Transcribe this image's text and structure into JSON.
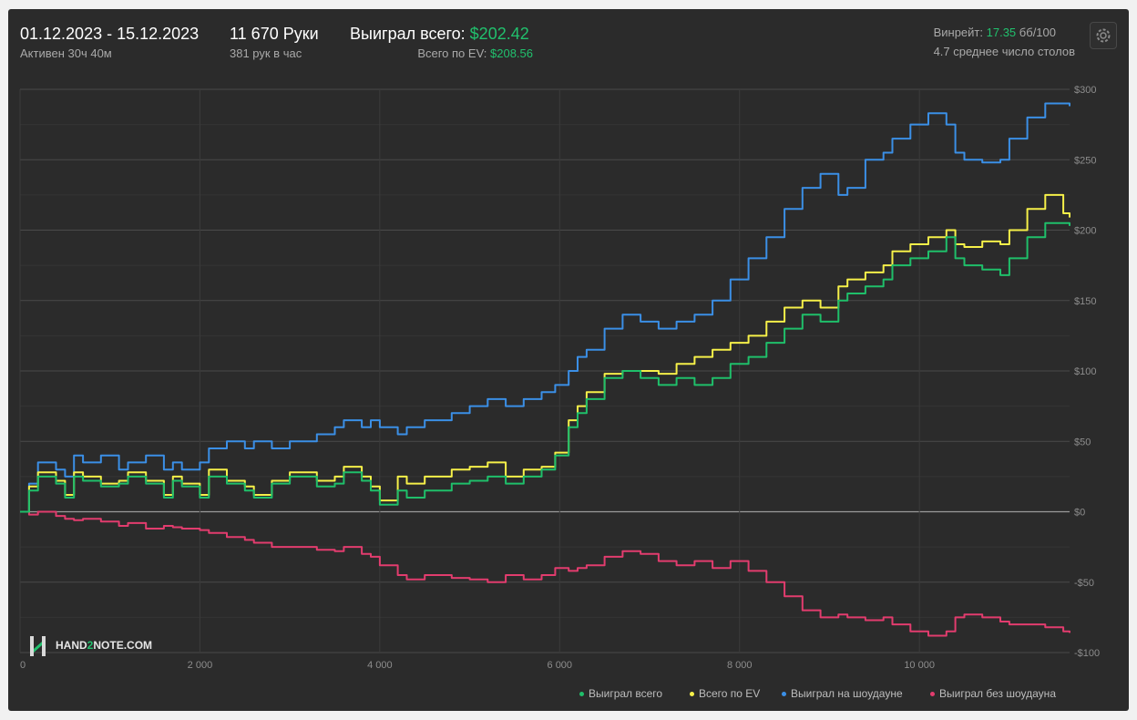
{
  "header": {
    "date_range": "01.12.2023 - 15.12.2023",
    "active_time": "Активен 30ч 40м",
    "hands": "11 670 Руки",
    "hands_per_hour": "381 рук в час",
    "won_total_label": "Выиграл всего:",
    "won_total_value": "$202.42",
    "ev_total_label": "Всего по EV:",
    "ev_total_value": "$208.56",
    "winrate_label": "Винрейт:",
    "winrate_value": "17.35",
    "winrate_unit": "бб/100",
    "avg_tables": "4.7 среднее число столов"
  },
  "logo": {
    "prefix": "HAND",
    "number": "2",
    "suffix": "NOTE.COM"
  },
  "icons": {
    "settings": "gear-icon",
    "logo": "h2n-logo-icon"
  },
  "colors": {
    "won_total": "#1fbf6a",
    "ev": "#f6f049",
    "showdown": "#3b8fe6",
    "non_showdown": "#e23c6e"
  },
  "chart_data": {
    "type": "line",
    "xlabel": "",
    "ylabel": "",
    "xlim": [
      0,
      11670
    ],
    "ylim": [
      -100,
      300
    ],
    "x_ticks": [
      0,
      2000,
      4000,
      6000,
      8000,
      10000
    ],
    "x_tick_labels": [
      "0",
      "2 000",
      "4 000",
      "6 000",
      "8 000",
      "10 000"
    ],
    "y_ticks": [
      300,
      250,
      200,
      150,
      100,
      50,
      0,
      -50,
      -100
    ],
    "y_tick_labels": [
      "$300",
      "$250",
      "$200",
      "$150",
      "$100",
      "$50",
      "$0",
      "-$50",
      "-$100"
    ],
    "grid": true,
    "legend_position": "bottom-right",
    "series": [
      {
        "name": "Выиграл всего",
        "color": "#1fbf6a",
        "x": [
          0,
          100,
          200,
          400,
          500,
          600,
          700,
          900,
          1100,
          1200,
          1400,
          1600,
          1700,
          1800,
          2000,
          2100,
          2300,
          2500,
          2600,
          2800,
          3000,
          3300,
          3500,
          3600,
          3800,
          3900,
          4000,
          4200,
          4300,
          4500,
          4800,
          5000,
          5200,
          5400,
          5600,
          5800,
          5950,
          6100,
          6200,
          6300,
          6500,
          6700,
          6900,
          7100,
          7300,
          7500,
          7700,
          7900,
          8100,
          8300,
          8500,
          8700,
          8900,
          9100,
          9200,
          9400,
          9600,
          9700,
          9900,
          10100,
          10300,
          10400,
          10500,
          10700,
          10900,
          11000,
          11200,
          11400,
          11600,
          11670
        ],
        "y": [
          0,
          15,
          25,
          20,
          10,
          25,
          22,
          18,
          20,
          25,
          20,
          10,
          22,
          18,
          10,
          25,
          20,
          15,
          10,
          20,
          25,
          18,
          20,
          28,
          22,
          15,
          5,
          15,
          10,
          15,
          20,
          22,
          25,
          20,
          25,
          30,
          40,
          60,
          70,
          80,
          95,
          100,
          95,
          90,
          95,
          90,
          95,
          105,
          110,
          120,
          130,
          140,
          135,
          150,
          155,
          160,
          165,
          175,
          180,
          185,
          195,
          180,
          175,
          172,
          168,
          180,
          195,
          205,
          205,
          203
        ]
      },
      {
        "name": "Всего по EV",
        "color": "#f6f049",
        "x": [
          0,
          100,
          200,
          400,
          500,
          600,
          700,
          900,
          1100,
          1200,
          1400,
          1600,
          1700,
          1800,
          2000,
          2100,
          2300,
          2500,
          2600,
          2800,
          3000,
          3300,
          3500,
          3600,
          3800,
          3900,
          4000,
          4200,
          4300,
          4500,
          4800,
          5000,
          5200,
          5400,
          5600,
          5800,
          5950,
          6100,
          6200,
          6300,
          6500,
          6700,
          6900,
          7100,
          7300,
          7500,
          7700,
          7900,
          8100,
          8300,
          8500,
          8700,
          8900,
          9100,
          9200,
          9400,
          9600,
          9700,
          9900,
          10100,
          10300,
          10400,
          10500,
          10700,
          10900,
          11000,
          11200,
          11400,
          11600,
          11670
        ],
        "y": [
          0,
          18,
          28,
          22,
          12,
          28,
          25,
          20,
          22,
          28,
          22,
          12,
          25,
          20,
          12,
          30,
          22,
          18,
          12,
          22,
          28,
          22,
          25,
          32,
          25,
          18,
          8,
          25,
          20,
          25,
          30,
          32,
          35,
          25,
          30,
          32,
          42,
          65,
          75,
          85,
          98,
          100,
          100,
          98,
          105,
          110,
          115,
          120,
          125,
          135,
          145,
          150,
          145,
          160,
          165,
          170,
          175,
          185,
          190,
          195,
          200,
          190,
          188,
          192,
          190,
          200,
          215,
          225,
          212,
          209
        ]
      },
      {
        "name": "Выиграл на шоудауне",
        "color": "#3b8fe6",
        "x": [
          0,
          100,
          200,
          400,
          500,
          600,
          700,
          900,
          1100,
          1200,
          1400,
          1600,
          1700,
          1800,
          2000,
          2100,
          2300,
          2500,
          2600,
          2800,
          3000,
          3300,
          3500,
          3600,
          3800,
          3900,
          4000,
          4200,
          4300,
          4500,
          4800,
          5000,
          5200,
          5400,
          5600,
          5800,
          5950,
          6100,
          6200,
          6300,
          6500,
          6700,
          6900,
          7100,
          7300,
          7500,
          7700,
          7900,
          8100,
          8300,
          8500,
          8700,
          8900,
          9100,
          9200,
          9400,
          9600,
          9700,
          9900,
          10100,
          10300,
          10400,
          10500,
          10700,
          10900,
          11000,
          11200,
          11400,
          11600,
          11670
        ],
        "y": [
          0,
          20,
          35,
          30,
          25,
          40,
          35,
          40,
          30,
          35,
          40,
          30,
          35,
          30,
          35,
          45,
          50,
          45,
          50,
          45,
          50,
          55,
          60,
          65,
          60,
          65,
          60,
          55,
          60,
          65,
          70,
          75,
          80,
          75,
          80,
          85,
          90,
          100,
          110,
          115,
          130,
          140,
          135,
          130,
          135,
          140,
          150,
          165,
          180,
          195,
          215,
          230,
          240,
          225,
          230,
          250,
          255,
          265,
          275,
          283,
          275,
          255,
          250,
          248,
          250,
          265,
          280,
          290,
          290,
          288
        ]
      },
      {
        "name": "Выиграл без шоудауна",
        "color": "#e23c6e",
        "x": [
          0,
          100,
          200,
          400,
          500,
          600,
          700,
          900,
          1100,
          1200,
          1400,
          1600,
          1700,
          1800,
          2000,
          2100,
          2300,
          2500,
          2600,
          2800,
          3000,
          3300,
          3500,
          3600,
          3800,
          3900,
          4000,
          4200,
          4300,
          4500,
          4800,
          5000,
          5200,
          5400,
          5600,
          5800,
          5950,
          6100,
          6200,
          6300,
          6500,
          6700,
          6900,
          7100,
          7300,
          7500,
          7700,
          7900,
          8100,
          8300,
          8500,
          8700,
          8900,
          9100,
          9200,
          9400,
          9600,
          9700,
          9900,
          10100,
          10300,
          10400,
          10500,
          10700,
          10900,
          11000,
          11200,
          11400,
          11600,
          11670
        ],
        "y": [
          0,
          -2,
          0,
          -3,
          -5,
          -6,
          -5,
          -7,
          -10,
          -8,
          -12,
          -10,
          -11,
          -12,
          -13,
          -15,
          -18,
          -20,
          -22,
          -25,
          -25,
          -27,
          -28,
          -25,
          -30,
          -32,
          -38,
          -45,
          -48,
          -45,
          -47,
          -48,
          -50,
          -45,
          -48,
          -45,
          -40,
          -42,
          -40,
          -38,
          -32,
          -28,
          -30,
          -35,
          -38,
          -35,
          -40,
          -35,
          -42,
          -50,
          -60,
          -70,
          -75,
          -73,
          -75,
          -77,
          -75,
          -80,
          -85,
          -88,
          -85,
          -75,
          -73,
          -75,
          -78,
          -80,
          -80,
          -82,
          -85,
          -86
        ]
      }
    ]
  }
}
